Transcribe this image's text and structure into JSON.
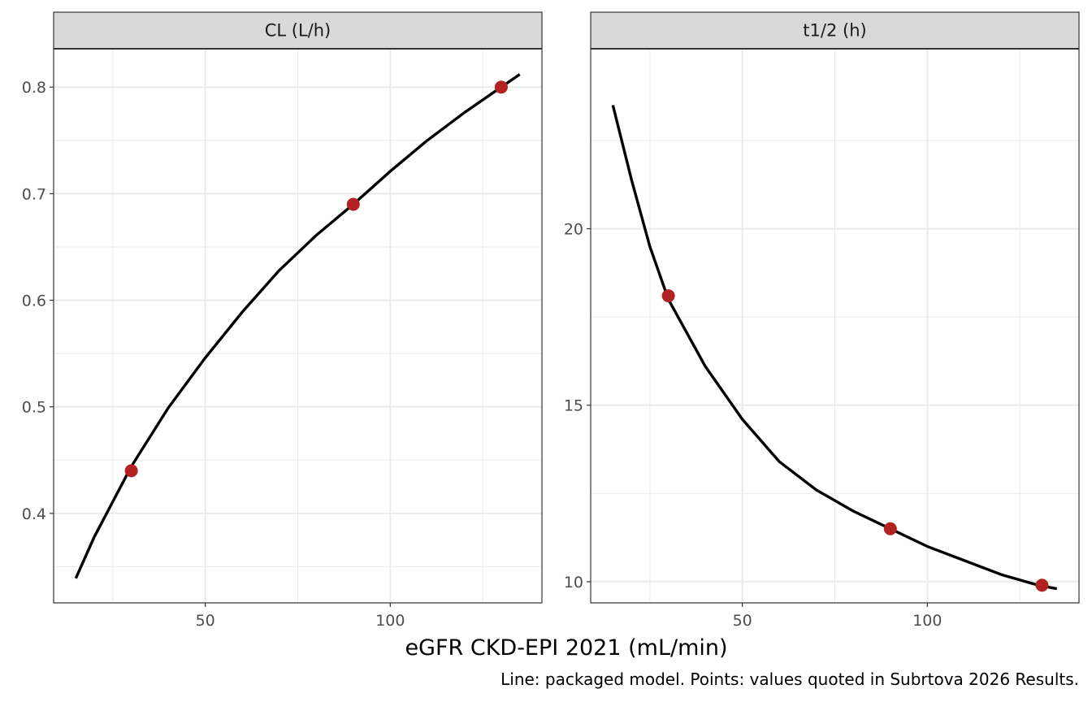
{
  "chart_data": {
    "type": "line",
    "xlabel": "eGFR CKD-EPI 2021 (mL/min)",
    "caption": "Line: packaged model. Points: values quoted in Subrtova 2026 Results.",
    "grid": true,
    "colors": {
      "line": "#000000",
      "points": "#b22222",
      "strip_bg": "#d9d9d9",
      "grid": "#ebebeb"
    },
    "xlim": [
      9,
      141
    ],
    "x_ticks": [
      50,
      100
    ],
    "x_minor_ticks": [
      25,
      75,
      125
    ],
    "facets": [
      {
        "strip": "CL (L/h)",
        "ylim": [
          0.316,
          0.836
        ],
        "y_ticks": [
          0.4,
          0.5,
          0.6,
          0.7,
          0.8
        ],
        "y_tick_labels": [
          "0.4",
          "0.5",
          "0.6",
          "0.7",
          "0.8"
        ],
        "y_minor_ticks": [
          0.35,
          0.45,
          0.55,
          0.65,
          0.75
        ],
        "series": [
          {
            "type": "line",
            "x": [
              15,
              20,
              30,
              40,
              50,
              60,
              70,
              80,
              90,
              100,
              110,
              120,
              130,
              135
            ],
            "y": [
              0.339,
              0.378,
              0.444,
              0.499,
              0.546,
              0.589,
              0.628,
              0.661,
              0.69,
              0.721,
              0.75,
              0.776,
              0.8,
              0.812
            ]
          },
          {
            "type": "scatter",
            "x": [
              30,
              90,
              130
            ],
            "y": [
              0.44,
              0.69,
              0.8
            ]
          }
        ]
      },
      {
        "strip": "t1/2 (h)",
        "ylim": [
          9.4,
          25.1
        ],
        "y_ticks": [
          10,
          15,
          20
        ],
        "y_tick_labels": [
          "10",
          "15",
          "20"
        ],
        "y_minor_ticks": [
          12.5,
          17.5,
          22.5
        ],
        "series": [
          {
            "type": "line",
            "x": [
              15,
              20,
              25,
              30,
              40,
              50,
              60,
              70,
              80,
              90,
              100,
              110,
              120,
              130,
              135
            ],
            "y": [
              23.5,
              21.4,
              19.5,
              18.0,
              16.1,
              14.6,
              13.4,
              12.6,
              12.0,
              11.5,
              11.0,
              10.6,
              10.2,
              9.9,
              9.8
            ]
          },
          {
            "type": "scatter",
            "x": [
              30,
              90,
              131
            ],
            "y": [
              18.1,
              11.5,
              9.9
            ]
          }
        ]
      }
    ]
  }
}
